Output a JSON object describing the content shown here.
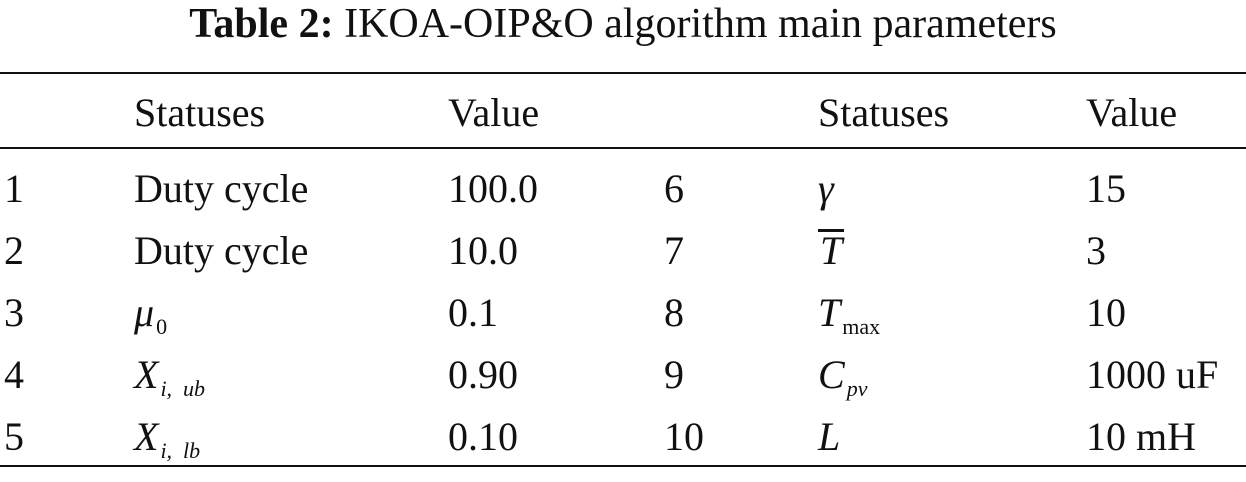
{
  "caption": {
    "label": "Table 2:",
    "title": "IKOA-OIP&O algorithm main parameters"
  },
  "header": {
    "col1": "",
    "statuses_left": "Statuses",
    "value_left": "Value",
    "col4": "",
    "statuses_right": "Statuses",
    "value_right": "Value"
  },
  "rows": [
    {
      "no": "1",
      "status": "Duty cycle",
      "value": "100.0",
      "no2": "6",
      "status2_sym": "γ",
      "value2": "15"
    },
    {
      "no": "2",
      "status": "Duty cycle",
      "value": "10.0",
      "no2": "7",
      "status2_sym": "T",
      "value2": "3"
    },
    {
      "no": "3",
      "status_sym": "μ",
      "status_sub": "0",
      "value": "0.1",
      "no2": "8",
      "status2_sym": "T",
      "status2_sub": "max",
      "value2": "10"
    },
    {
      "no": "4",
      "status_sym": "X",
      "status_sub": "i,  ub",
      "value": "0.90",
      "no2": "9",
      "status2_sym": "C",
      "status2_sub": "pv",
      "value2": "1000 uF"
    },
    {
      "no": "5",
      "status_sym": "X",
      "status_sub": "i,  lb",
      "value": "0.10",
      "no2": "10",
      "status2_sym": "L",
      "value2": "10 mH"
    }
  ]
}
